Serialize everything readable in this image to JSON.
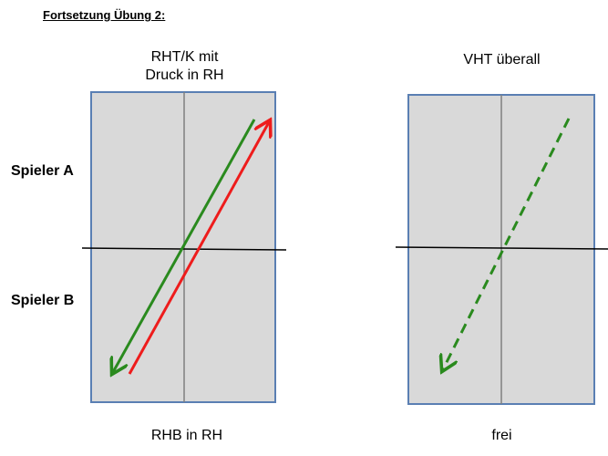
{
  "heading": "Fortsetzung Übung 2:",
  "rows": {
    "top": "Spieler A",
    "bottom": "Spieler B"
  },
  "panels": [
    {
      "title_line1": "RHT/K mit",
      "title_line2": "Druck in RH",
      "caption": "RHB in RH",
      "arrows": [
        {
          "color": "#2a8a1e",
          "style": "solid",
          "direction": "down-left"
        },
        {
          "color": "#ee1c1c",
          "style": "solid",
          "direction": "up-right"
        }
      ]
    },
    {
      "title_line1": "VHT überall",
      "caption": "frei",
      "arrows": [
        {
          "color": "#2a8a1e",
          "style": "dashed",
          "direction": "down-left"
        }
      ]
    }
  ],
  "colors": {
    "panel_fill": "#d9d9d9",
    "panel_border": "#5a7fb3",
    "center_line": "#808080"
  }
}
